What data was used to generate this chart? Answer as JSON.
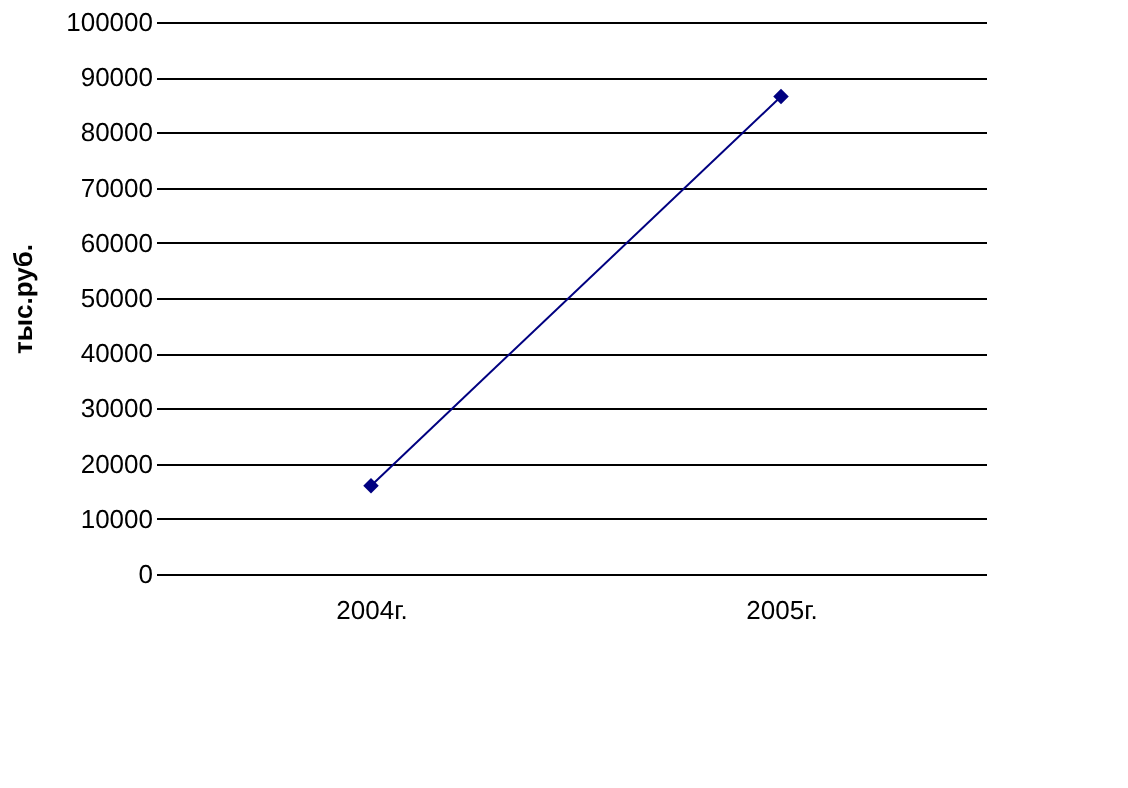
{
  "chart_data": {
    "type": "line",
    "ylabel": "тыс.руб.",
    "categories": [
      "2004г.",
      "2005г."
    ],
    "series": [
      {
        "color": "#000080",
        "values": [
          16000,
          86500
        ]
      }
    ],
    "ylim": [
      0,
      100000
    ],
    "yticks": [
      0,
      10000,
      20000,
      30000,
      40000,
      50000,
      60000,
      70000,
      80000,
      90000,
      100000
    ],
    "grid": "y",
    "marker": "diamond",
    "line_style": "solid",
    "legend": false
  }
}
